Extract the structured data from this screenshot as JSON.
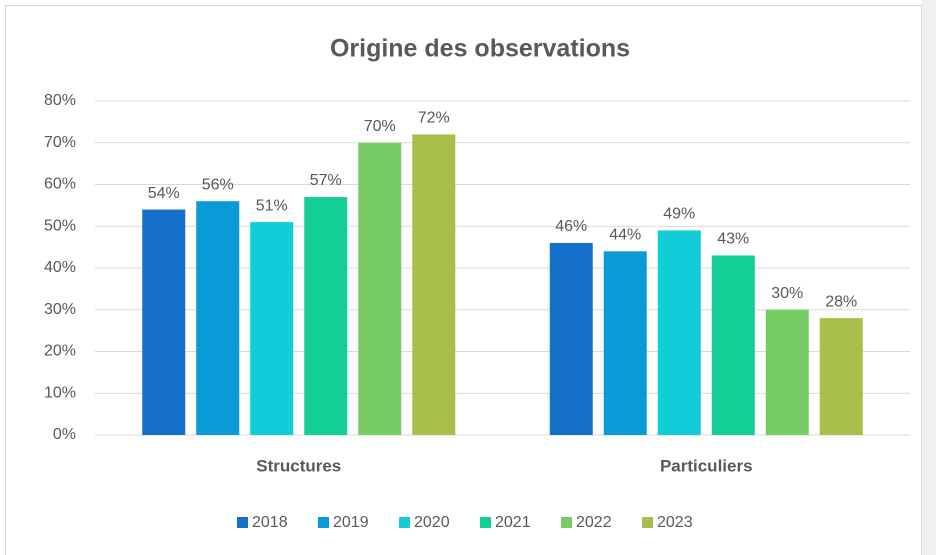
{
  "chart_data": {
    "type": "bar",
    "title": "Origine des observations",
    "categories": [
      "Structures",
      "Particuliers"
    ],
    "series": [
      {
        "name": "2018",
        "color": "#1570c9",
        "values": [
          54,
          46
        ],
        "value_labels": [
          "54%",
          "46%"
        ]
      },
      {
        "name": "2019",
        "color": "#0a9ad8",
        "values": [
          56,
          44
        ],
        "value_labels": [
          "56%",
          "44%"
        ]
      },
      {
        "name": "2020",
        "color": "#12ccd8",
        "values": [
          51,
          49
        ],
        "value_labels": [
          "51%",
          "49%"
        ]
      },
      {
        "name": "2021",
        "color": "#13cf96",
        "values": [
          57,
          43
        ],
        "value_labels": [
          "57%",
          "43%"
        ]
      },
      {
        "name": "2022",
        "color": "#78cc64",
        "values": [
          70,
          30
        ],
        "value_labels": [
          "70%",
          "30%"
        ]
      },
      {
        "name": "2023",
        "color": "#a8c04a",
        "values": [
          72,
          28
        ],
        "value_labels": [
          "72%",
          "28%"
        ]
      }
    ],
    "ylim": [
      0,
      80
    ],
    "yticks": [
      {
        "value": 0,
        "label": "0%"
      },
      {
        "value": 10,
        "label": "10%"
      },
      {
        "value": 20,
        "label": "20%"
      },
      {
        "value": 30,
        "label": "30%"
      },
      {
        "value": 40,
        "label": "40%"
      },
      {
        "value": 50,
        "label": "50%"
      },
      {
        "value": 60,
        "label": "60%"
      },
      {
        "value": 70,
        "label": "70%"
      },
      {
        "value": 80,
        "label": "80%"
      }
    ],
    "grid": true,
    "legend": "bottom"
  }
}
